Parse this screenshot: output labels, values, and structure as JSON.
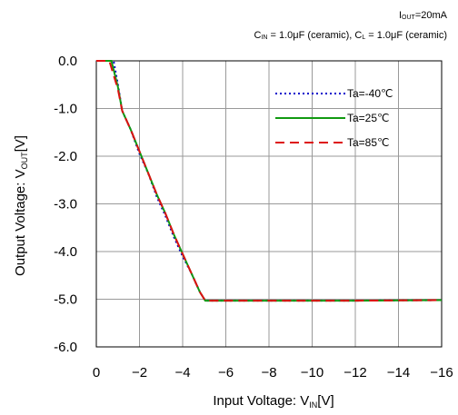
{
  "conditions": {
    "iout_prefix": "I",
    "iout_sub": "OUT",
    "iout_value": "=20mA",
    "cin_prefix": "C",
    "cin_sub": "IN",
    "cin_value": " = 1.0μF (ceramic), ",
    "cl_prefix": "C",
    "cl_sub": "L",
    "cl_value": " = 1.0μF (ceramic)"
  },
  "axes": {
    "x_title": "Input Voltage: V",
    "x_title_sub": "IN",
    "x_title_unit": "[V]",
    "y_title": "Output Voltage: V",
    "y_title_sub": "OUT",
    "y_title_unit": "[V]"
  },
  "colors": {
    "ta_m40": "#0000cc",
    "ta_25": "#119911",
    "ta_85": "#dd1111",
    "grid": "#999999"
  },
  "chart_data": {
    "type": "line",
    "grid": true,
    "legend_position": "top-right",
    "x_range": [
      0,
      -16
    ],
    "y_range": [
      0,
      -6
    ],
    "x_ticks": [
      0,
      -2,
      -4,
      -6,
      -8,
      -10,
      -12,
      -14,
      -16
    ],
    "x_tick_labels": [
      "0",
      "−2",
      "−4",
      "−6",
      "−8",
      "−10",
      "−12",
      "−14",
      "−16"
    ],
    "y_ticks": [
      0,
      -1,
      -2,
      -3,
      -4,
      -5,
      -6
    ],
    "y_tick_labels": [
      "0.0",
      "-1.0",
      "-2.0",
      "-3.0",
      "-4.0",
      "-5.0",
      "-6.0"
    ],
    "series": [
      {
        "name": "Ta=-40℃",
        "style": "dotted",
        "color_key": "ta_m40",
        "x": [
          0.0,
          -0.8,
          -1.0,
          -1.2,
          -1.6,
          -2.0,
          -2.4,
          -2.8,
          -3.2,
          -3.6,
          -4.0,
          -4.4,
          -4.8,
          -5.05,
          -5.3,
          -8.0,
          -12.0,
          -16.0
        ],
        "y": [
          0.0,
          0.0,
          -0.5,
          -1.05,
          -1.45,
          -1.95,
          -2.35,
          -2.85,
          -3.25,
          -3.7,
          -4.1,
          -4.45,
          -4.85,
          -5.03,
          -5.03,
          -5.03,
          -5.03,
          -5.02
        ]
      },
      {
        "name": "Ta=25℃",
        "style": "solid",
        "color_key": "ta_25",
        "x": [
          0.0,
          -0.7,
          -1.0,
          -1.2,
          -1.6,
          -2.0,
          -2.4,
          -2.8,
          -3.2,
          -3.6,
          -4.0,
          -4.4,
          -4.8,
          -5.05,
          -5.3,
          -8.0,
          -12.0,
          -16.0
        ],
        "y": [
          0.0,
          0.0,
          -0.55,
          -1.05,
          -1.45,
          -1.9,
          -2.35,
          -2.8,
          -3.2,
          -3.65,
          -4.05,
          -4.45,
          -4.85,
          -5.03,
          -5.03,
          -5.03,
          -5.03,
          -5.02
        ]
      },
      {
        "name": "Ta=85℃",
        "style": "dashed",
        "color_key": "ta_85",
        "x": [
          0.0,
          -0.6,
          -1.0,
          -1.2,
          -1.6,
          -2.0,
          -2.4,
          -2.8,
          -3.2,
          -3.6,
          -4.0,
          -4.4,
          -4.8,
          -5.05,
          -5.3,
          -8.0,
          -12.0,
          -16.0
        ],
        "y": [
          0.0,
          0.0,
          -0.6,
          -1.05,
          -1.45,
          -1.9,
          -2.35,
          -2.8,
          -3.2,
          -3.65,
          -4.05,
          -4.45,
          -4.85,
          -5.03,
          -5.03,
          -5.03,
          -5.03,
          -5.02
        ]
      }
    ]
  }
}
